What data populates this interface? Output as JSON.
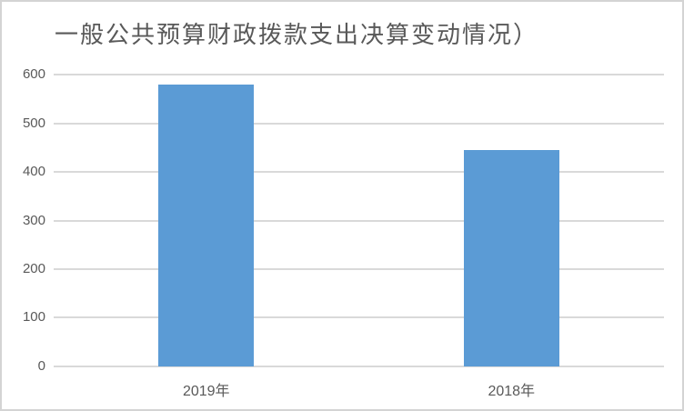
{
  "chart_data": {
    "type": "bar",
    "title": "一般公共预算财政拨款支出决算变动情况）",
    "categories": [
      "2019年",
      "2018年"
    ],
    "values": [
      580,
      445
    ],
    "xlabel": "",
    "ylabel": "",
    "ylim": [
      0,
      600
    ],
    "yticks": [
      0,
      100,
      200,
      300,
      400,
      500,
      600
    ],
    "grid": "horizontal",
    "legend": "none",
    "bar_color": "#5B9BD5",
    "gridline_color": "#D9D9D9",
    "text_color": "#595959"
  }
}
